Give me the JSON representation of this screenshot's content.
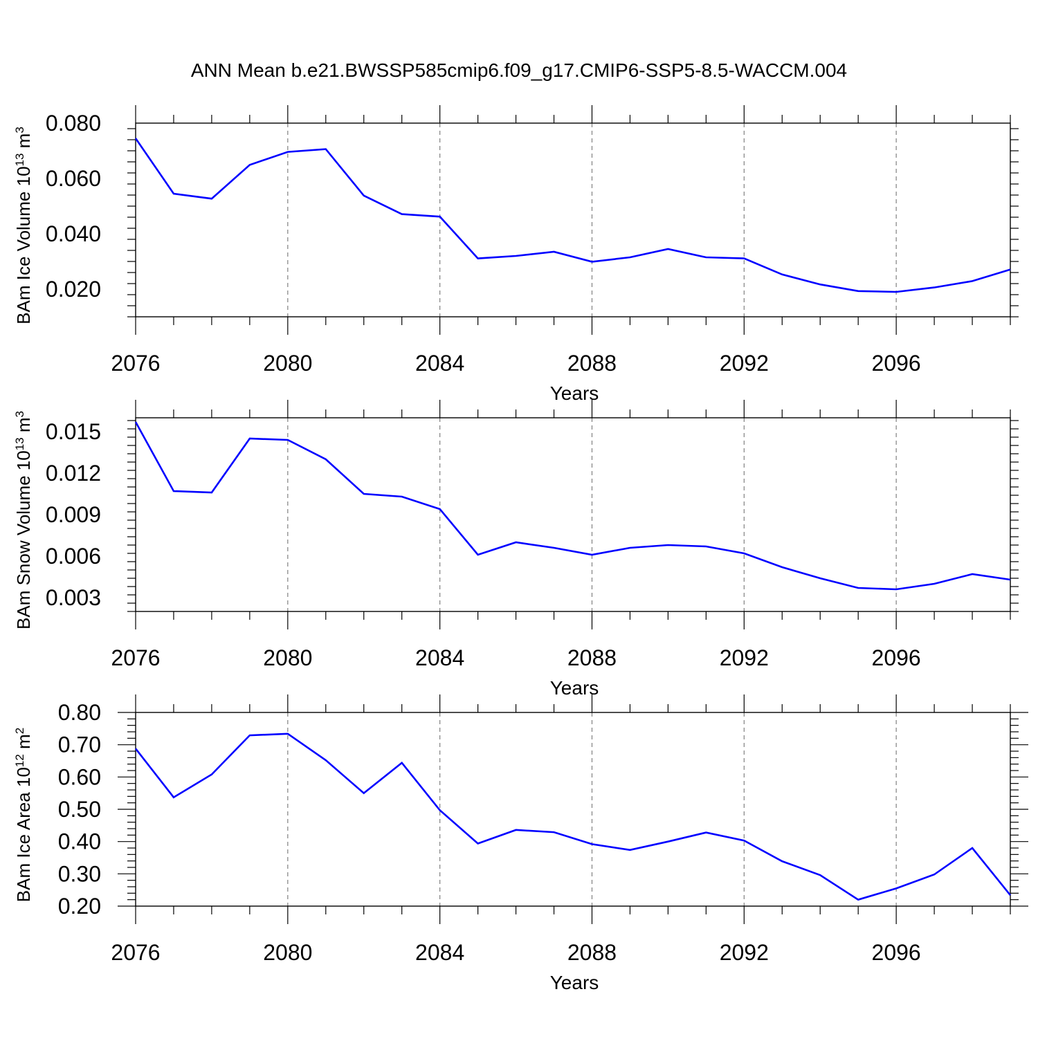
{
  "title": "ANN Mean b.e21.BWSSP585cmip6.f09_g17.CMIP6-SSP5-8.5-WACCM.004",
  "colors": {
    "line": "#0000ff",
    "axis": "#000000",
    "grid": "#808080"
  },
  "chart_data": [
    {
      "type": "line",
      "ylabel": {
        "text": "BAm Ice Volume 10",
        "sup1": "13",
        "mid": " m",
        "sup2": "3"
      },
      "xlabel": "Years",
      "xlim": [
        2076,
        2099
      ],
      "ylim": [
        0.01,
        0.08
      ],
      "yticks": [
        0.02,
        0.04,
        0.06,
        0.08
      ],
      "ytick_labels": [
        "0.020",
        "0.040",
        "0.060",
        "0.080"
      ],
      "xticks": [
        2076,
        2080,
        2084,
        2088,
        2092,
        2096
      ],
      "xtick_labels": [
        "2076",
        "2080",
        "2084",
        "2088",
        "2092",
        "2096"
      ],
      "grid_x": true,
      "x": [
        2076,
        2077,
        2078,
        2079,
        2080,
        2081,
        2082,
        2083,
        2084,
        2085,
        2086,
        2087,
        2088,
        2089,
        2090,
        2091,
        2092,
        2093,
        2094,
        2095,
        2096,
        2097,
        2098,
        2099
      ],
      "values": [
        0.0745,
        0.0545,
        0.0527,
        0.0649,
        0.0696,
        0.0706,
        0.0538,
        0.0471,
        0.0462,
        0.0311,
        0.032,
        0.0335,
        0.0299,
        0.0315,
        0.0345,
        0.0315,
        0.0311,
        0.0253,
        0.0217,
        0.0193,
        0.019,
        0.0206,
        0.0229,
        0.0271
      ]
    },
    {
      "type": "line",
      "ylabel": {
        "text": "BAm Snow Volume 10",
        "sup1": "13",
        "mid": " m",
        "sup2": "3"
      },
      "xlabel": "Years",
      "xlim": [
        2076,
        2099
      ],
      "ylim": [
        0.002,
        0.016
      ],
      "yticks": [
        0.003,
        0.006,
        0.009,
        0.012,
        0.015
      ],
      "ytick_labels": [
        "0.003",
        "0.006",
        "0.009",
        "0.012",
        "0.015"
      ],
      "xticks": [
        2076,
        2080,
        2084,
        2088,
        2092,
        2096
      ],
      "xtick_labels": [
        "2076",
        "2080",
        "2084",
        "2088",
        "2092",
        "2096"
      ],
      "grid_x": true,
      "x": [
        2076,
        2077,
        2078,
        2079,
        2080,
        2081,
        2082,
        2083,
        2084,
        2085,
        2086,
        2087,
        2088,
        2089,
        2090,
        2091,
        2092,
        2093,
        2094,
        2095,
        2096,
        2097,
        2098,
        2099
      ],
      "values": [
        0.0157,
        0.0107,
        0.0106,
        0.0145,
        0.0144,
        0.013,
        0.0105,
        0.0103,
        0.0094,
        0.0061,
        0.007,
        0.0066,
        0.0061,
        0.0066,
        0.0068,
        0.0067,
        0.0062,
        0.0052,
        0.0044,
        0.0037,
        0.0036,
        0.004,
        0.0047,
        0.0043
      ]
    },
    {
      "type": "line",
      "ylabel": {
        "text": "BAm Ice Area 10",
        "sup1": "12",
        "mid": " m",
        "sup2": "2"
      },
      "xlabel": "Years",
      "xlim": [
        2076,
        2099
      ],
      "ylim": [
        0.2,
        0.8
      ],
      "yticks": [
        0.2,
        0.3,
        0.4,
        0.5,
        0.6,
        0.7,
        0.8
      ],
      "ytick_labels": [
        "0.20",
        "0.30",
        "0.40",
        "0.50",
        "0.60",
        "0.70",
        "0.80"
      ],
      "xticks": [
        2076,
        2080,
        2084,
        2088,
        2092,
        2096
      ],
      "xtick_labels": [
        "2076",
        "2080",
        "2084",
        "2088",
        "2092",
        "2096"
      ],
      "grid_x": true,
      "x": [
        2076,
        2077,
        2078,
        2079,
        2080,
        2081,
        2082,
        2083,
        2084,
        2085,
        2086,
        2087,
        2088,
        2089,
        2090,
        2091,
        2092,
        2093,
        2094,
        2095,
        2096,
        2097,
        2098,
        2099
      ],
      "values": [
        0.688,
        0.537,
        0.608,
        0.729,
        0.734,
        0.652,
        0.55,
        0.644,
        0.497,
        0.394,
        0.436,
        0.429,
        0.392,
        0.374,
        0.4,
        0.428,
        0.403,
        0.339,
        0.296,
        0.22,
        0.255,
        0.298,
        0.38,
        0.234
      ]
    }
  ]
}
